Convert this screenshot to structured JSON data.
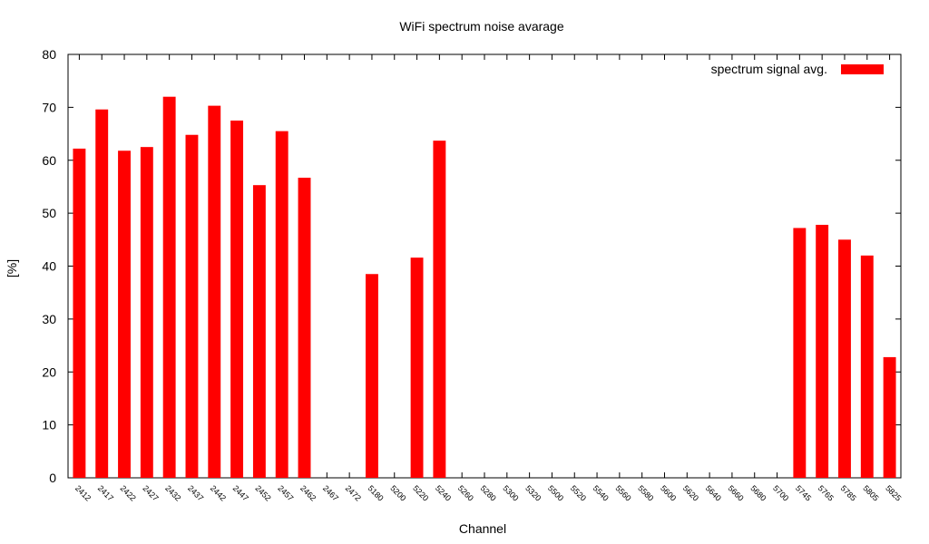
{
  "chart_data": {
    "type": "bar",
    "title": "WiFi spectrum noise avarage",
    "xlabel": "Channel",
    "ylabel": "[%]",
    "ylim": [
      0,
      80
    ],
    "yticks": [
      0,
      10,
      20,
      30,
      40,
      50,
      60,
      70,
      80
    ],
    "grid": false,
    "legend_position": "top-right",
    "bar_color": "#ff0000",
    "categories": [
      "2412",
      "2417",
      "2422",
      "2427",
      "2432",
      "2437",
      "2442",
      "2447",
      "2452",
      "2457",
      "2462",
      "2467",
      "2472",
      "5180",
      "5200",
      "5220",
      "5240",
      "5260",
      "5280",
      "5300",
      "5320",
      "5500",
      "5520",
      "5540",
      "5560",
      "5580",
      "5600",
      "5620",
      "5640",
      "5660",
      "5680",
      "5700",
      "5745",
      "5765",
      "5785",
      "5805",
      "5825"
    ],
    "series": [
      {
        "name": "spectrum signal avg.",
        "values": [
          62.2,
          69.6,
          61.8,
          62.5,
          72.0,
          64.8,
          70.3,
          67.5,
          55.3,
          65.5,
          56.7,
          0,
          0,
          38.5,
          0,
          41.6,
          63.7,
          0,
          0,
          0,
          0,
          0,
          0,
          0,
          0,
          0,
          0,
          0,
          0,
          0,
          0,
          0,
          47.2,
          47.8,
          45.0,
          42.0,
          22.8
        ]
      }
    ]
  }
}
